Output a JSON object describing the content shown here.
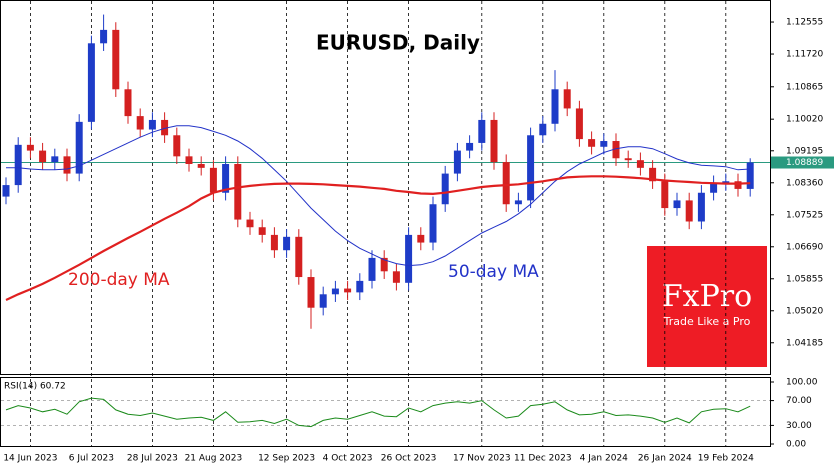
{
  "chart_data": {
    "type": "candlestick",
    "title": "EURUSD, Daily",
    "categories": [
      null,
      null,
      "14 Jun 2023",
      null,
      null,
      null,
      null,
      "6 Jul 2023",
      null,
      null,
      null,
      null,
      "28 Jul 2023",
      null,
      null,
      null,
      null,
      "21 Aug 2023",
      null,
      null,
      null,
      null,
      null,
      "12 Sep 2023",
      null,
      null,
      null,
      null,
      "4 Oct 2023",
      null,
      null,
      null,
      null,
      "26 Oct 2023",
      null,
      null,
      null,
      null,
      null,
      "17 Nov 2023",
      null,
      null,
      null,
      null,
      "11 Dec 2023",
      null,
      null,
      null,
      null,
      "4 Jan 2024",
      null,
      null,
      null,
      null,
      "26 Jan 2024",
      null,
      null,
      null,
      null,
      "19 Feb 2024",
      null,
      null
    ],
    "open": [
      1.08,
      1.083,
      1.0935,
      1.092,
      1.089,
      1.0905,
      1.086,
      1.0995,
      1.12,
      1.1235,
      1.108,
      1.101,
      1.0975,
      1.1,
      1.096,
      1.0905,
      1.0885,
      1.0875,
      1.081,
      1.0885,
      1.074,
      1.072,
      1.07,
      1.066,
      1.0695,
      1.059,
      1.051,
      1.0545,
      1.056,
      1.055,
      1.058,
      1.064,
      1.0605,
      1.0575,
      1.07,
      1.068,
      1.078,
      1.086,
      1.092,
      1.094,
      1.1,
      1.089,
      1.078,
      1.079,
      1.096,
      1.099,
      1.108,
      1.103,
      1.095,
      1.093,
      1.0945,
      1.09,
      1.0895,
      1.0875,
      1.084,
      1.077,
      1.079,
      1.0735,
      1.081,
      1.0835,
      1.084,
      1.082
    ],
    "high": [
      1.085,
      1.0955,
      1.0955,
      1.094,
      1.0925,
      1.0925,
      1.1015,
      1.122,
      1.1275,
      1.1255,
      1.11,
      1.103,
      1.102,
      1.102,
      1.098,
      1.0925,
      1.0905,
      1.0895,
      1.0905,
      1.0905,
      1.076,
      1.074,
      1.072,
      1.0715,
      1.0715,
      1.061,
      1.0565,
      1.058,
      1.058,
      1.06,
      1.066,
      1.066,
      1.0625,
      1.072,
      1.072,
      1.08,
      1.088,
      1.094,
      1.096,
      1.102,
      1.102,
      1.091,
      1.081,
      1.098,
      1.101,
      1.113,
      1.11,
      1.105,
      1.097,
      1.0965,
      1.0965,
      1.092,
      1.0915,
      1.0895,
      1.086,
      1.081,
      1.081,
      1.083,
      1.0855,
      1.086,
      1.086,
      1.09
    ],
    "low": [
      1.078,
      1.081,
      1.09,
      1.087,
      1.087,
      1.084,
      1.084,
      1.0975,
      1.118,
      1.106,
      1.099,
      1.0955,
      1.0955,
      1.094,
      1.0885,
      1.0865,
      1.0855,
      1.079,
      1.079,
      1.072,
      1.07,
      1.068,
      1.064,
      1.064,
      1.057,
      1.0455,
      1.049,
      1.0525,
      1.053,
      1.053,
      1.056,
      1.0585,
      1.0555,
      1.0555,
      1.066,
      1.066,
      1.076,
      1.084,
      1.09,
      1.092,
      1.087,
      1.076,
      1.076,
      1.077,
      1.094,
      1.097,
      1.101,
      1.093,
      1.091,
      1.091,
      1.088,
      1.0875,
      1.0855,
      1.082,
      1.075,
      1.075,
      1.0715,
      1.0715,
      1.079,
      1.0815,
      1.08,
      1.08
    ],
    "close": [
      1.083,
      1.0935,
      1.092,
      1.089,
      1.0905,
      1.086,
      1.0995,
      1.12,
      1.1235,
      1.108,
      1.101,
      1.0975,
      1.1,
      1.096,
      1.0905,
      1.0885,
      1.0875,
      1.081,
      1.0885,
      1.074,
      1.072,
      1.07,
      1.066,
      1.0695,
      1.059,
      1.051,
      1.0545,
      1.056,
      1.055,
      1.058,
      1.064,
      1.0605,
      1.0575,
      1.07,
      1.068,
      1.078,
      1.086,
      1.092,
      1.094,
      1.1,
      1.089,
      1.078,
      1.079,
      1.096,
      1.099,
      1.108,
      1.103,
      1.095,
      1.093,
      1.0945,
      1.09,
      1.0895,
      1.0875,
      1.084,
      1.077,
      1.079,
      1.0735,
      1.081,
      1.0835,
      1.084,
      1.082,
      1.0889
    ],
    "up_color": "#1e3cc8",
    "down_color": "#d42020",
    "ylim": [
      1.0337,
      1.1313
    ],
    "yticks": [
      1.12555,
      {
        "value": 1.1172,
        "label": "1.11720"
      },
      1.10865,
      {
        "value": 1.1002,
        "label": "1.10020"
      },
      1.09195,
      {
        "value": 1.0836,
        "label": "1.08360"
      },
      1.07525,
      {
        "value": 1.0669,
        "label": "1.06690"
      },
      1.05855,
      {
        "value": 1.0502,
        "label": "1.05020"
      },
      1.04185
    ],
    "series": [
      {
        "name": "50-day MA",
        "color": "#2232c8",
        "values": [
          1.0875,
          1.0875,
          1.0872,
          1.087,
          1.087,
          1.0872,
          1.088,
          1.0895,
          1.091,
          1.0925,
          1.094,
          1.0955,
          1.0968,
          1.0978,
          1.0985,
          1.0985,
          1.098,
          1.097,
          1.096,
          1.0945,
          1.0925,
          1.09,
          1.087,
          1.084,
          1.0805,
          1.077,
          1.074,
          1.071,
          1.0685,
          1.0665,
          1.065,
          1.0635,
          1.0625,
          1.062,
          1.0622,
          1.063,
          1.0645,
          1.0665,
          1.0685,
          1.0705,
          1.072,
          1.0735,
          1.0755,
          1.078,
          1.081,
          1.084,
          1.0865,
          1.0885,
          1.09,
          1.0915,
          1.0925,
          1.093,
          1.093,
          1.0925,
          1.0912,
          1.0898,
          1.0888,
          1.0882,
          1.088,
          1.0878,
          1.087,
          1.0872
        ]
      },
      {
        "name": "200-day MA",
        "color": "#e02020",
        "values": [
          1.053,
          1.0545,
          1.0558,
          1.0572,
          1.0588,
          1.0605,
          1.0622,
          1.064,
          1.0658,
          1.0675,
          1.0692,
          1.0708,
          1.0725,
          1.0742,
          1.0758,
          1.0775,
          1.0795,
          1.081,
          1.0818,
          1.0824,
          1.0828,
          1.0831,
          1.0833,
          1.0834,
          1.0834,
          1.0833,
          1.0832,
          1.083,
          1.0828,
          1.0826,
          1.0823,
          1.082,
          1.0815,
          1.0812,
          1.0808,
          1.0807,
          1.081,
          1.0815,
          1.082,
          1.0825,
          1.0828,
          1.083,
          1.0832,
          1.0836,
          1.084,
          1.0845,
          1.085,
          1.0852,
          1.0853,
          1.0853,
          1.0852,
          1.085,
          1.0848,
          1.0845,
          1.0842,
          1.084,
          1.0838,
          1.0836,
          1.0835,
          1.0834,
          1.0834,
          1.0835
        ]
      }
    ],
    "last_price": 1.08889,
    "last_price_color": "#2a9a80",
    "logo": {
      "name": "FxPro",
      "tagline": "Trade Like a Pro",
      "color": "#ee1c25"
    },
    "rsi": {
      "label": "RSI(14) 60.72",
      "color": "#1a8a1a",
      "values": [
        55,
        62,
        58,
        52,
        56,
        48,
        68,
        74,
        72,
        55,
        48,
        46,
        50,
        45,
        40,
        42,
        43,
        38,
        52,
        35,
        36,
        38,
        33,
        40,
        30,
        28,
        38,
        42,
        40,
        46,
        52,
        45,
        44,
        58,
        52,
        62,
        66,
        68,
        66,
        70,
        55,
        42,
        45,
        62,
        64,
        68,
        55,
        47,
        48,
        52,
        46,
        47,
        45,
        42,
        35,
        42,
        34,
        52,
        56,
        57,
        52,
        61
      ],
      "ylim": [
        0,
        100
      ],
      "yticks": [
        {
          "value": 100,
          "label": "100.00"
        },
        {
          "value": 70,
          "label": "70.00"
        },
        {
          "value": 30,
          "label": "30.00"
        },
        {
          "value": 0,
          "label": "0.00"
        }
      ]
    }
  }
}
